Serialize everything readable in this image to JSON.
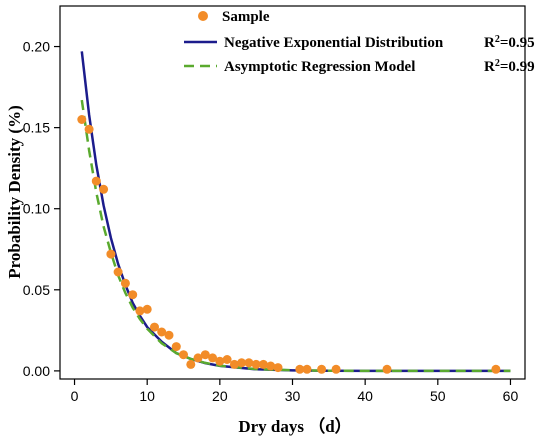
{
  "chart_data": {
    "type": "scatter",
    "title": "",
    "xlabel": "Dry days  （d）",
    "ylabel": "Probability Density (%)",
    "xlim": [
      -2,
      62
    ],
    "ylim": [
      -0.005,
      0.225
    ],
    "xticks": [
      0,
      10,
      20,
      30,
      40,
      50,
      60
    ],
    "xtick_labels": [
      "0",
      "10",
      "20",
      "30",
      "40",
      "50",
      "60"
    ],
    "yticks": [
      0.0,
      0.05,
      0.1,
      0.15,
      0.2
    ],
    "ytick_labels": [
      "0.00",
      "0.05",
      "0.10",
      "0.15",
      "0.20"
    ],
    "grid": false,
    "legend_position": "top-right",
    "colors": {
      "sample": "#f28c28",
      "negative_exponential": "#1c1c8c",
      "asymptotic_regression": "#5aaa2e"
    },
    "legend": [
      {
        "key": "sample",
        "label": "Sample",
        "r2_base": "",
        "r2_sup": "",
        "r2_value": ""
      },
      {
        "key": "negative_exponential",
        "label": "Negative Exponential Distribution",
        "r2_base": "R",
        "r2_sup": "2",
        "r2_value": "=0.95"
      },
      {
        "key": "asymptotic_regression",
        "label": "Asymptotic Regression Model",
        "r2_base": "R",
        "r2_sup": "2",
        "r2_value": "=0.99"
      }
    ],
    "series": [
      {
        "name": "Sample",
        "kind": "scatter",
        "x": [
          1,
          2,
          3,
          4,
          5,
          6,
          7,
          8,
          9,
          10,
          11,
          12,
          13,
          14,
          15,
          16,
          17,
          18,
          19,
          20,
          21,
          22,
          23,
          24,
          25,
          26,
          27,
          28,
          31,
          32,
          34,
          36,
          43,
          58
        ],
        "y": [
          0.155,
          0.149,
          0.117,
          0.112,
          0.072,
          0.061,
          0.054,
          0.047,
          0.037,
          0.038,
          0.027,
          0.024,
          0.022,
          0.015,
          0.01,
          0.004,
          0.008,
          0.01,
          0.008,
          0.006,
          0.007,
          0.004,
          0.005,
          0.005,
          0.004,
          0.004,
          0.003,
          0.002,
          0.001,
          0.001,
          0.001,
          0.001,
          0.001,
          0.001
        ]
      },
      {
        "name": "Negative Exponential Distribution",
        "kind": "line",
        "x": [
          1,
          2,
          3,
          4,
          5,
          6,
          7,
          8,
          9,
          10,
          12,
          14,
          16,
          18,
          20,
          25,
          30,
          35,
          40,
          45,
          50,
          55,
          60
        ],
        "y": [
          0.197,
          0.158,
          0.127,
          0.102,
          0.082,
          0.066,
          0.053,
          0.042,
          0.034,
          0.027,
          0.018,
          0.011,
          0.0074,
          0.0048,
          0.0031,
          0.001,
          0.0003,
          0.0001,
          0.0,
          0.0,
          0.0,
          0.0,
          0.0
        ]
      },
      {
        "name": "Asymptotic Regression Model",
        "kind": "dashed-line",
        "x": [
          1,
          2,
          3,
          4,
          5,
          6,
          7,
          8,
          9,
          10,
          12,
          14,
          16,
          18,
          20,
          25,
          30,
          35,
          40,
          45,
          50,
          55,
          60
        ],
        "y": [
          0.167,
          0.136,
          0.11,
          0.089,
          0.073,
          0.059,
          0.048,
          0.039,
          0.032,
          0.026,
          0.017,
          0.011,
          0.0074,
          0.0049,
          0.0032,
          0.0011,
          0.0004,
          0.0001,
          0.0,
          0.0,
          0.0,
          0.0,
          0.0
        ]
      }
    ]
  }
}
